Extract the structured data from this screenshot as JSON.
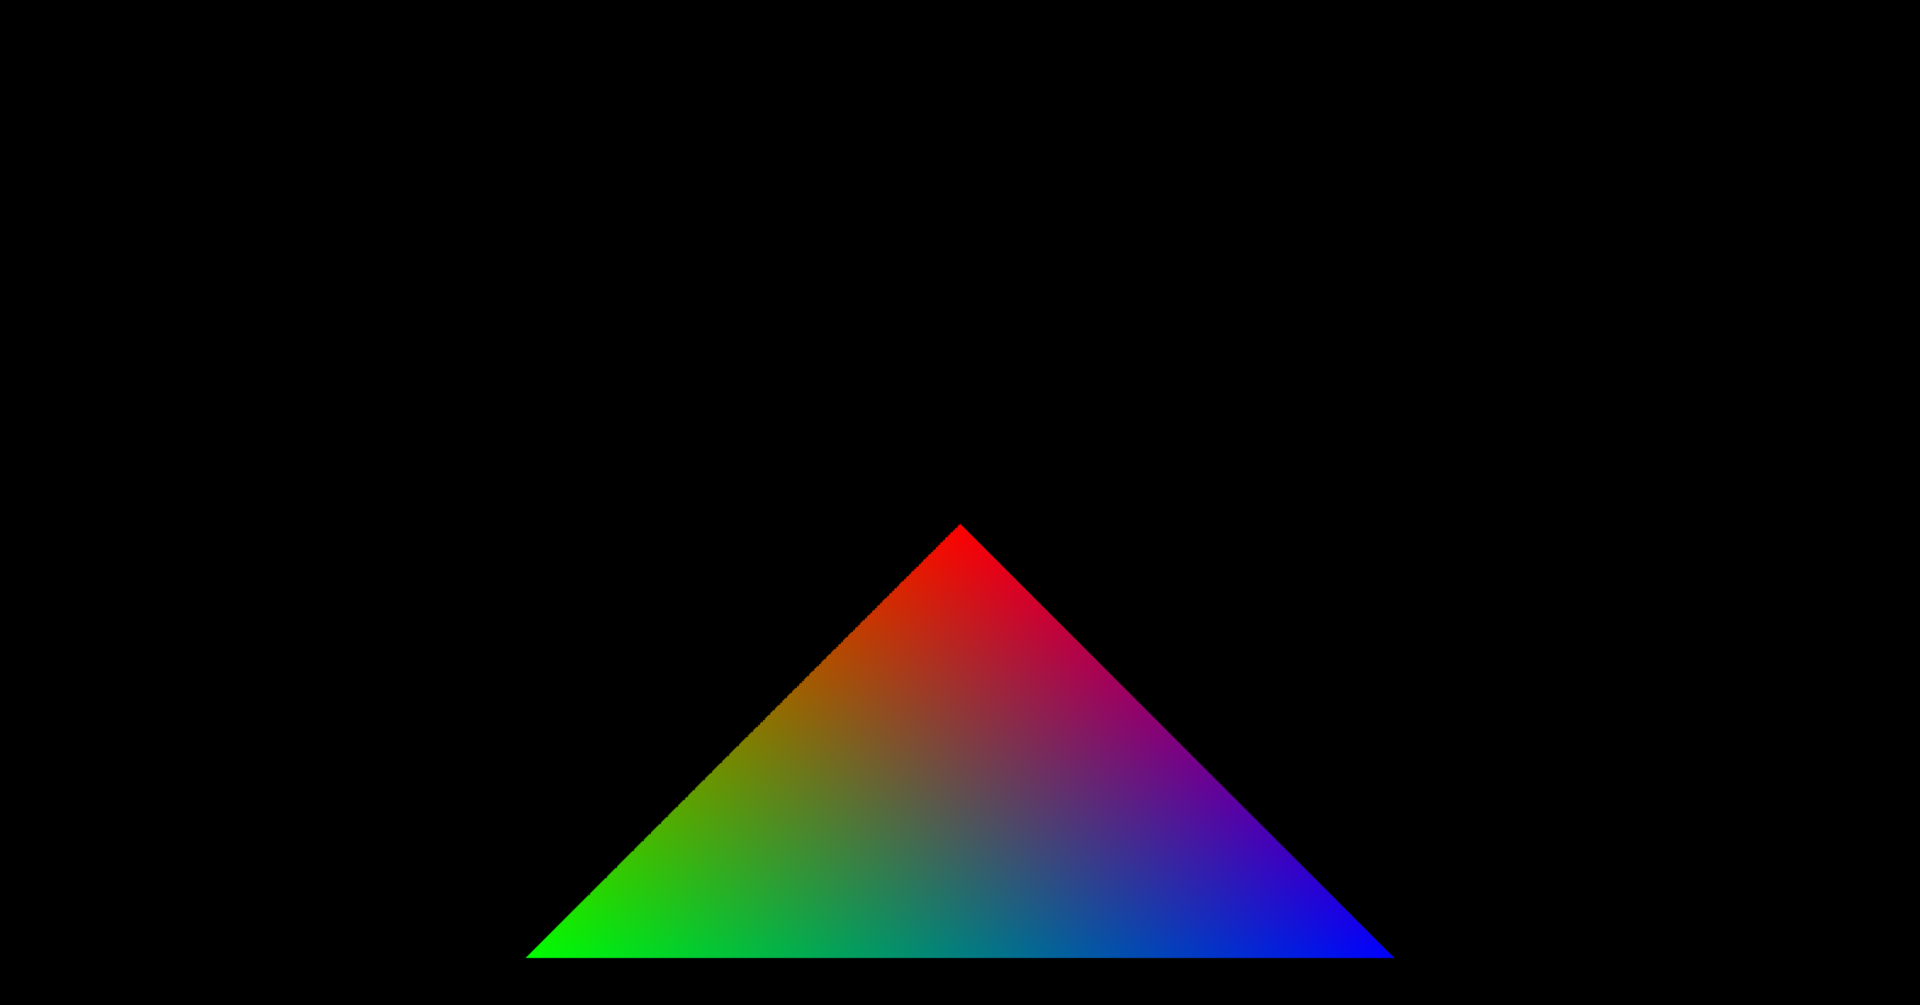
{
  "scene": {
    "background_color": "#000000",
    "triangle": {
      "shading": "vertex-color-interpolation",
      "vertex_colors": {
        "top": "#ff0000",
        "bottom_left": "#00ff00",
        "bottom_right": "#0000ff"
      }
    }
  }
}
